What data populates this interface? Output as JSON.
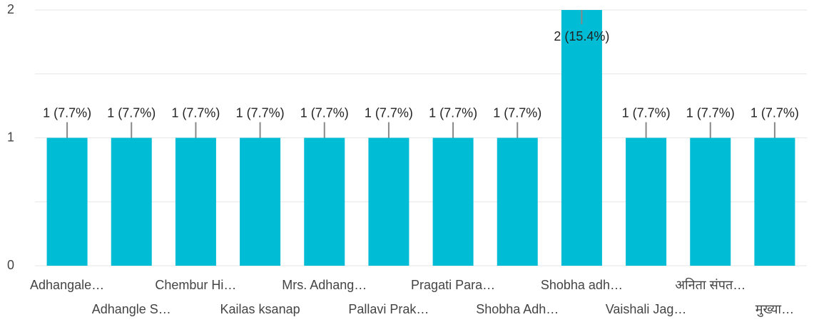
{
  "chart_data": {
    "type": "bar",
    "categories": [
      "Adhangale…",
      "Adhangle S…",
      "Chembur Hi…",
      "Kailas ksanap",
      "Mrs. Adhang…",
      "Pallavi Prak…",
      "Pragati Para…",
      "Shobha Adh…",
      "Shobha adh…",
      "Vaishali Jag…",
      "अनिता संपत…",
      "मुख्या…"
    ],
    "values": [
      1,
      1,
      1,
      1,
      1,
      1,
      1,
      1,
      2,
      1,
      1,
      1
    ],
    "value_labels": [
      "1 (7.7%)",
      "1 (7.7%)",
      "1 (7.7%)",
      "1 (7.7%)",
      "1 (7.7%)",
      "1 (7.7%)",
      "1 (7.7%)",
      "1 (7.7%)",
      "2 (15.4%)",
      "1 (7.7%)",
      "1 (7.7%)",
      "1 (7.7%)"
    ],
    "color": "#00bcd4",
    "ylim": [
      0,
      2
    ],
    "yticks": [
      0,
      1,
      2
    ],
    "minor_yticks": [
      0.5,
      1.5
    ],
    "grid": true
  }
}
